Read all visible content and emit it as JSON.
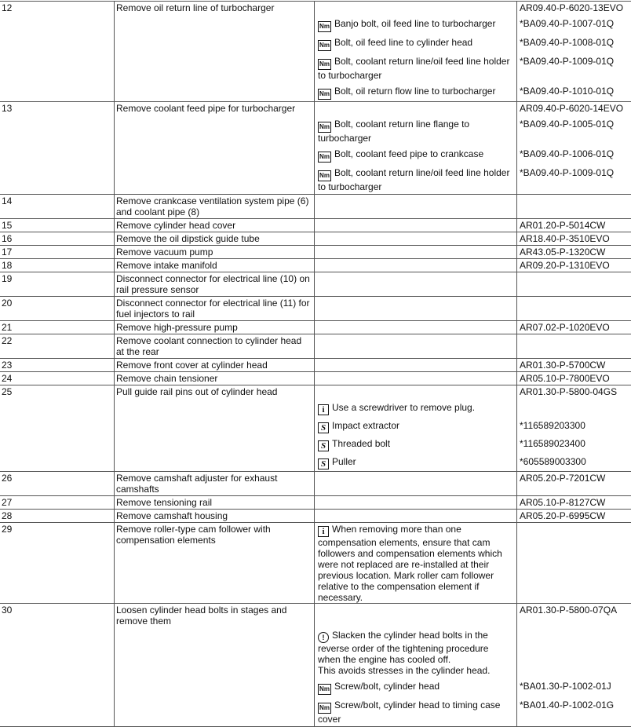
{
  "rows": [
    {
      "num": "12",
      "action": "Remove oil return line of turbocharger",
      "ref": "AR09.40-P-6020-13EVO",
      "items": [
        {
          "icon": "Nm",
          "text": "Banjo bolt, oil feed line to turbocharger",
          "ref": "*BA09.40-P-1007-01Q"
        },
        {
          "icon": "Nm",
          "text": "Bolt, oil feed line to cylinder head",
          "ref": "*BA09.40-P-1008-01Q"
        },
        {
          "icon": "Nm",
          "text": "Bolt, coolant return line/oil feed line holder to turbocharger",
          "ref": "*BA09.40-P-1009-01Q"
        },
        {
          "icon": "Nm",
          "text": "Bolt, oil return flow line to turbocharger",
          "ref": "*BA09.40-P-1010-01Q"
        }
      ]
    },
    {
      "num": "13",
      "action": "Remove coolant feed pipe for turbocharger",
      "ref": "AR09.40-P-6020-14EVO",
      "items": [
        {
          "icon": "Nm",
          "text": "Bolt, coolant return line flange to turbocharger",
          "ref": "*BA09.40-P-1005-01Q"
        },
        {
          "icon": "Nm",
          "text": "Bolt, coolant feed pipe to crankcase",
          "ref": "*BA09.40-P-1006-01Q"
        },
        {
          "icon": "Nm",
          "text": "Bolt, coolant return line/oil feed line holder to turbocharger",
          "ref": "*BA09.40-P-1009-01Q"
        }
      ]
    },
    {
      "num": "14",
      "action": "Remove crankcase ventilation system pipe (6) and coolant pipe (8)",
      "ref": "",
      "items": []
    },
    {
      "num": "15",
      "action": "Remove cylinder head cover",
      "ref": "AR01.20-P-5014CW",
      "items": []
    },
    {
      "num": "16",
      "action": "Remove the oil dipstick guide tube",
      "ref": "AR18.40-P-3510EVO",
      "items": []
    },
    {
      "num": "17",
      "action": "Remove vacuum pump",
      "ref": "AR43.05-P-1320CW",
      "items": []
    },
    {
      "num": "18",
      "action": "Remove intake manifold",
      "ref": "AR09.20-P-1310EVO",
      "items": []
    },
    {
      "num": "19",
      "action": "Disconnect connector for electrical line (10) on rail pressure sensor",
      "ref": "",
      "items": []
    },
    {
      "num": "20",
      "action": "Disconnect connector for electrical line (11) for fuel injectors to rail",
      "ref": "",
      "items": []
    },
    {
      "num": "21",
      "action": "Remove high-pressure pump",
      "ref": "AR07.02-P-1020EVO",
      "items": []
    },
    {
      "num": "22",
      "action": "Remove coolant connection to cylinder head at the rear",
      "ref": "",
      "items": []
    },
    {
      "num": "23",
      "action": "Remove front cover at cylinder head",
      "ref": "AR01.30-P-5700CW",
      "items": []
    },
    {
      "num": "24",
      "action": "Remove chain tensioner",
      "ref": "AR05.10-P-7800EVO",
      "items": []
    },
    {
      "num": "25",
      "action": "Pull guide rail pins out of cylinder head",
      "ref": "AR01.30-P-5800-04GS",
      "items": [
        {
          "icon": "i",
          "text": "Use a screwdriver to remove plug.",
          "ref": ""
        },
        {
          "icon": "tool",
          "text": "Impact extractor",
          "ref": "*116589203300"
        },
        {
          "icon": "tool",
          "text": "Threaded bolt",
          "ref": "*116589023400"
        },
        {
          "icon": "tool",
          "text": "Puller",
          "ref": "*605589003300"
        }
      ]
    },
    {
      "num": "26",
      "action": "Remove camshaft adjuster for exhaust camshafts",
      "ref": "AR05.20-P-7201CW",
      "items": []
    },
    {
      "num": "27",
      "action": "Remove tensioning rail",
      "ref": "AR05.10-P-8127CW",
      "items": []
    },
    {
      "num": "28",
      "action": "Remove camshaft housing",
      "ref": "AR05.20-P-6995CW",
      "items": []
    },
    {
      "num": "29",
      "action": "Remove roller-type cam follower with compensation elements",
      "ref": "",
      "first_note": {
        "icon": "i",
        "text": "When removing more than one compensation elements, ensure that cam followers and compensation elements which were not replaced are re-installed at their previous location. Mark roller cam follower relative to the compensation element if necessary."
      },
      "items": []
    },
    {
      "num": "30",
      "action": "Loosen cylinder head bolts in stages and remove them",
      "ref": "AR01.30-P-5800-07QA",
      "items": [
        {
          "icon": "note",
          "text": "Slacken the cylinder head bolts in the reverse order of the tightening procedure when the engine has cooled off.\nThis avoids stresses in the cylinder head.",
          "ref": "",
          "gap": true
        },
        {
          "icon": "Nm",
          "text": "Screw/bolt, cylinder head",
          "ref": "*BA01.30-P-1002-01J"
        },
        {
          "icon": "Nm",
          "text": "Screw/bolt, cylinder head to timing case cover",
          "ref": "*BA01.40-P-1002-01G"
        }
      ]
    }
  ]
}
